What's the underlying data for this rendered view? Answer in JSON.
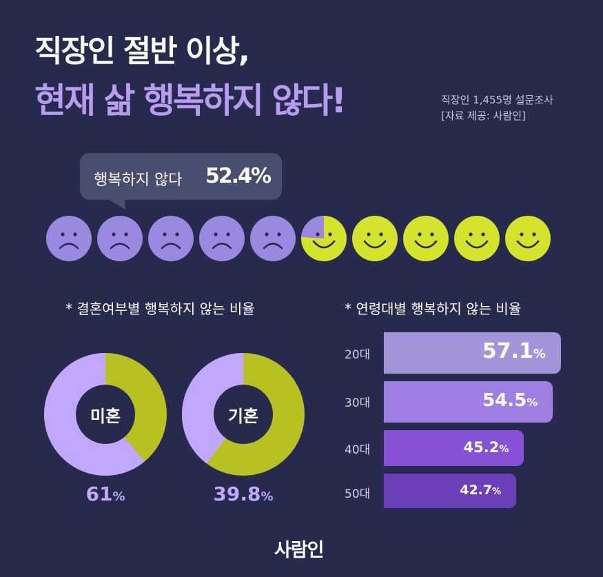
{
  "header": {
    "title_line1": "직장인 절반 이상,",
    "title_line2": "현재 삶 행복하지 않다!",
    "source_line1": "직장인 1,455명 설문조사",
    "source_line2": "[자료 제공: 사람인]"
  },
  "callout": {
    "label": "행복하지 않다",
    "value": "52.4%"
  },
  "colors": {
    "background": "#262a4d",
    "unhappy": "#9b88e0",
    "happy": "#d5e32d",
    "marital_unhappy": "#c2a7ff",
    "marital_other": "#b9c022",
    "bar_20": "#a393d9",
    "bar_30": "#9f7fe3",
    "bar_40": "#8651d6",
    "bar_50": "#6e3fbb"
  },
  "chart_data": [
    {
      "type": "pictogram",
      "total_icons": 10,
      "unhappy_share": 0.524,
      "icon_unhappy": "sad-face-icon",
      "icon_happy": "smiley-face-icon"
    },
    {
      "type": "pie",
      "title": "* 결혼여부별 행복하지 않는 비율",
      "items": [
        {
          "label": "미혼",
          "value": 61,
          "value_text": "61",
          "unit": "%"
        },
        {
          "label": "기혼",
          "value": 39.8,
          "value_text": "39.8",
          "unit": "%"
        }
      ]
    },
    {
      "type": "bar",
      "orientation": "horizontal",
      "title": "* 연령대별 행복하지 않는 비율",
      "categories": [
        "20대",
        "30대",
        "40대",
        "50대"
      ],
      "values": [
        57.1,
        54.5,
        45.2,
        42.7
      ],
      "value_labels": [
        "57.1",
        "54.5",
        "45.2",
        "42.7"
      ],
      "unit": "%"
    }
  ],
  "footer": {
    "logo": "사람인"
  }
}
